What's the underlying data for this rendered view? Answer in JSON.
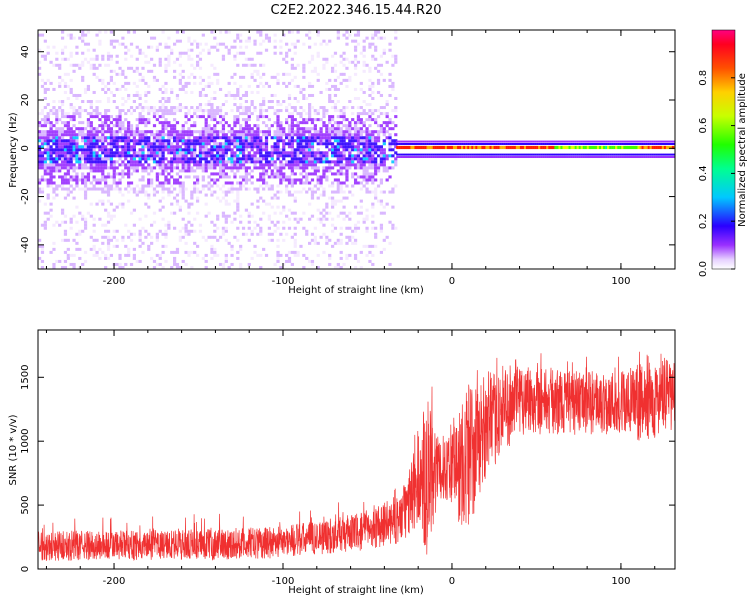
{
  "title": "C2E2.2022.346.15.44.R20",
  "colors": {
    "snr_line": "#f03030",
    "frame": "#000000"
  },
  "chart_data": [
    {
      "type": "heatmap",
      "name": "spectrogram",
      "title": "C2E2.2022.346.15.44.R20",
      "xlabel": "Height of straight line (km)",
      "ylabel": "Frequency (Hz)",
      "xlim": [
        -245,
        132
      ],
      "ylim": [
        -50,
        49
      ],
      "xticks": [
        -200,
        -100,
        0,
        100
      ],
      "xtick_labels": [
        "-200",
        "-100",
        "0",
        "100"
      ],
      "yticks": [
        -40,
        -20,
        0,
        20,
        40
      ],
      "ytick_labels": [
        "-40",
        "-20",
        "0",
        "20",
        "40"
      ],
      "description_regions": {
        "noisy_region_x": [
          -245,
          -33
        ],
        "clean_line_x": [
          -33,
          132
        ],
        "line_frequency": 0
      },
      "colorbar": {
        "label": "Normalized spectral amplitude",
        "range": [
          0.0,
          1.0
        ],
        "ticks": [
          0.0,
          0.2,
          0.4,
          0.6,
          0.8
        ],
        "tick_labels": [
          "0.0",
          "0.2",
          "0.4",
          "0.6",
          "0.8"
        ]
      }
    },
    {
      "type": "line",
      "name": "snr",
      "xlabel": "Height of straight line (km)",
      "ylabel": "SNR (10 * v/v)",
      "xlim": [
        -245,
        132
      ],
      "ylim": [
        0,
        1870
      ],
      "xticks": [
        -200,
        -100,
        0,
        100
      ],
      "xtick_labels": [
        "-200",
        "-100",
        "0",
        "100"
      ],
      "yticks": [
        0,
        500,
        1000,
        1500
      ],
      "ytick_labels": [
        "0",
        "500",
        "1000",
        "1500"
      ],
      "envelope": {
        "x": [
          -245,
          -200,
          -150,
          -110,
          -90,
          -70,
          -50,
          -40,
          -30,
          -25,
          -20,
          -15,
          -12,
          -8,
          -5,
          0,
          5,
          10,
          15,
          20,
          30,
          40,
          50,
          70,
          90,
          110,
          132
        ],
        "lower": [
          60,
          70,
          70,
          80,
          100,
          120,
          150,
          180,
          200,
          250,
          350,
          80,
          300,
          450,
          550,
          500,
          300,
          300,
          500,
          700,
          900,
          1050,
          1050,
          1050,
          1050,
          1000,
          1050
        ],
        "upper": [
          300,
          300,
          310,
          330,
          360,
          400,
          450,
          520,
          600,
          800,
          1100,
          1200,
          1400,
          1000,
          1050,
          1100,
          1300,
          1500,
          1450,
          1450,
          1600,
          1650,
          1600,
          1550,
          1550,
          1600,
          1650
        ]
      }
    }
  ]
}
